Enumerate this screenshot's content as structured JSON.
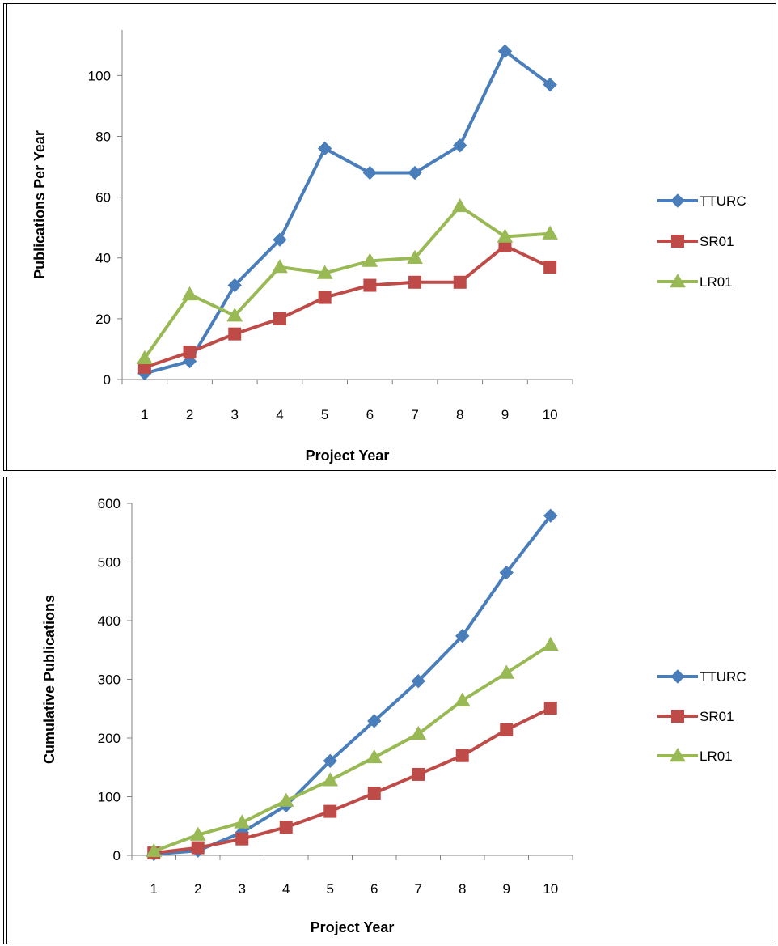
{
  "colors": {
    "TTURC": "#4a7ebb",
    "SR01": "#be4b48",
    "LR01": "#98b954",
    "axis": "#808080",
    "frame": "#000000"
  },
  "chart_data": [
    {
      "type": "line",
      "categories": [
        "1",
        "2",
        "3",
        "4",
        "5",
        "6",
        "7",
        "8",
        "9",
        "10"
      ],
      "xlabel": "Project Year",
      "ylabel": "Publications Per Year",
      "ylim": [
        0,
        115
      ],
      "yticks": [
        0,
        20,
        40,
        60,
        80,
        100
      ],
      "grid": false,
      "legend_position": "right",
      "series": [
        {
          "name": "TTURC",
          "marker": "diamond",
          "values": [
            2,
            6,
            31,
            46,
            76,
            68,
            68,
            77,
            108,
            97
          ]
        },
        {
          "name": "SR01",
          "marker": "square",
          "values": [
            4,
            9,
            15,
            20,
            27,
            31,
            32,
            32,
            44,
            37
          ]
        },
        {
          "name": "LR01",
          "marker": "triangle",
          "values": [
            7,
            28,
            21,
            37,
            35,
            39,
            40,
            57,
            47,
            48
          ]
        }
      ]
    },
    {
      "type": "line",
      "categories": [
        "1",
        "2",
        "3",
        "4",
        "5",
        "6",
        "7",
        "8",
        "9",
        "10"
      ],
      "xlabel": "Project Year",
      "ylabel": "Cumulative Publications",
      "ylim": [
        0,
        600
      ],
      "yticks": [
        0,
        100,
        200,
        300,
        400,
        500,
        600
      ],
      "grid": false,
      "legend_position": "right",
      "series": [
        {
          "name": "TTURC",
          "marker": "diamond",
          "values": [
            2,
            8,
            39,
            85,
            161,
            229,
            297,
            374,
            482,
            579
          ]
        },
        {
          "name": "SR01",
          "marker": "square",
          "values": [
            4,
            13,
            28,
            48,
            75,
            106,
            138,
            170,
            214,
            251
          ]
        },
        {
          "name": "LR01",
          "marker": "triangle",
          "values": [
            7,
            35,
            56,
            93,
            128,
            167,
            207,
            264,
            311,
            359
          ]
        }
      ]
    }
  ]
}
